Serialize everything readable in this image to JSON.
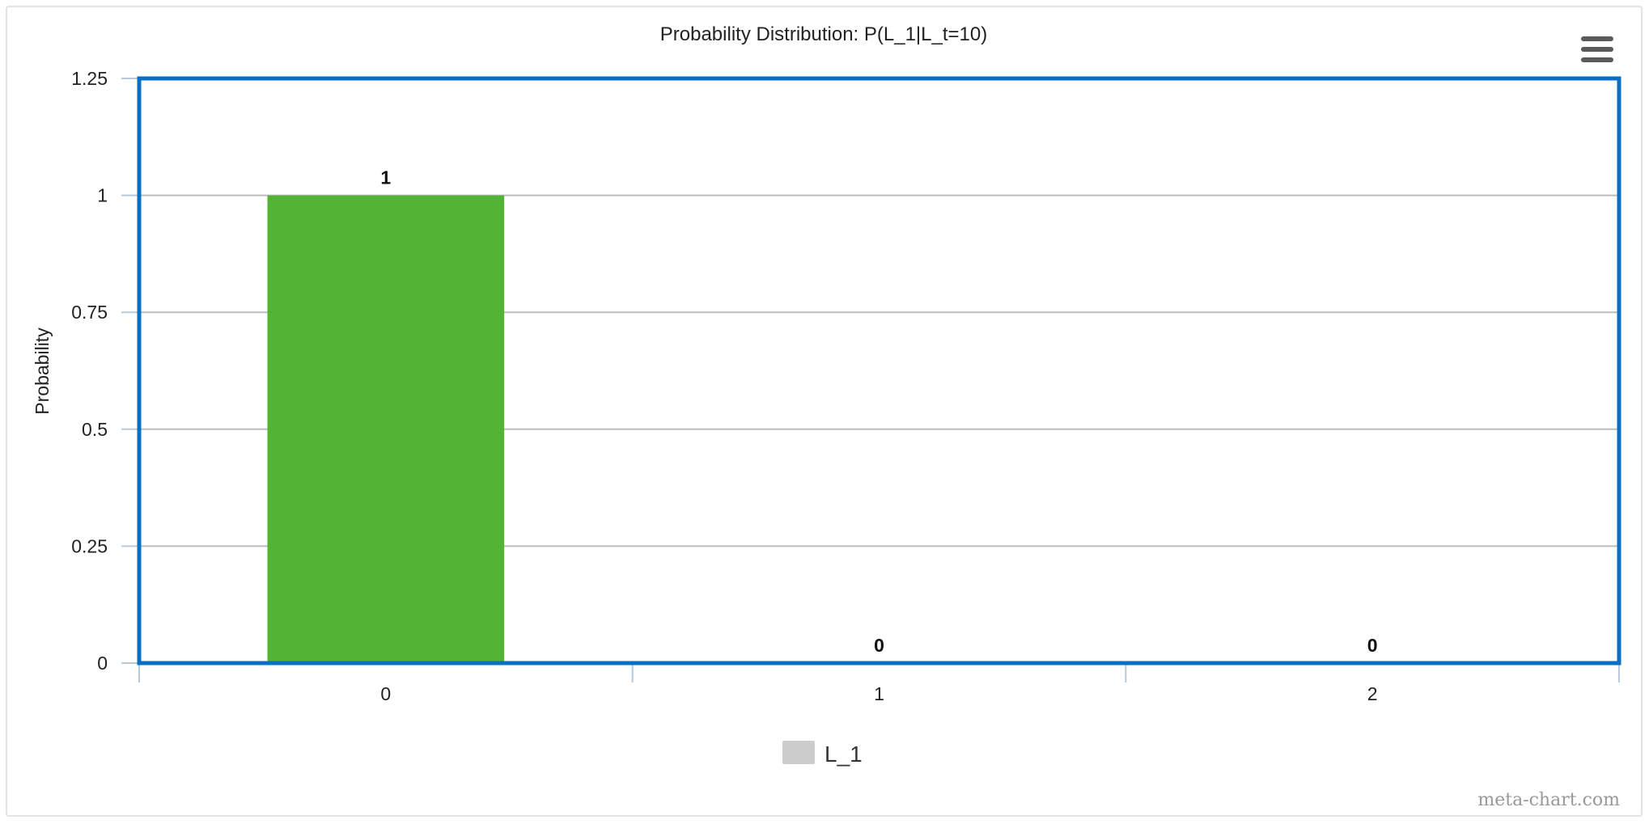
{
  "chart_data": {
    "type": "bar",
    "title": "Probability Distribution: P(L_1|L_t=10)",
    "xlabel": "",
    "ylabel": "Probability",
    "categories": [
      "0",
      "1",
      "2"
    ],
    "series": [
      {
        "name": "L_1",
        "values": [
          1,
          0,
          0
        ],
        "color": "#52b334"
      }
    ],
    "data_labels": [
      "1",
      "0",
      "0"
    ],
    "ylim": [
      0,
      1.25
    ],
    "yticks": [
      0,
      0.25,
      0.5,
      0.75,
      1,
      1.25
    ],
    "ytick_labels": [
      "0",
      "0.25",
      "0.5",
      "0.75",
      "1",
      "1.25"
    ],
    "grid": true,
    "legend_position": "bottom-center",
    "legend_swatch_color": "#cccccc",
    "plot_border_color": "#0a6fc2"
  },
  "menu": {
    "icon": "hamburger-menu-icon"
  },
  "credits": "meta-chart.com"
}
